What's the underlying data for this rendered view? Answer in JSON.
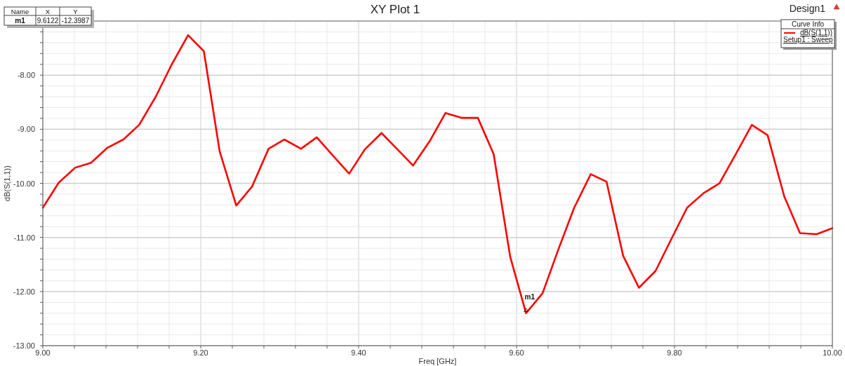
{
  "chart_data": {
    "type": "line",
    "title": "XY Plot 1",
    "subtitle": "Design1",
    "xlabel": "Freq [GHz]",
    "ylabel": "dB(S(1,1))",
    "legend_title": "Curve Info",
    "x": [
      9,
      9.02,
      9.041,
      9.061,
      9.082,
      9.102,
      9.122,
      9.143,
      9.163,
      9.184,
      9.204,
      9.224,
      9.245,
      9.265,
      9.286,
      9.306,
      9.327,
      9.347,
      9.367,
      9.388,
      9.408,
      9.429,
      9.449,
      9.469,
      9.49,
      9.51,
      9.531,
      9.551,
      9.571,
      9.592,
      9.612,
      9.633,
      9.653,
      9.673,
      9.694,
      9.714,
      9.735,
      9.755,
      9.776,
      9.796,
      9.816,
      9.837,
      9.857,
      9.878,
      9.898,
      9.918,
      9.939,
      9.959,
      9.98,
      10
    ],
    "series": [
      {
        "name": "dB(S(1,1))",
        "color": "#ff0000",
        "values": [
          -10.45,
          -9.99,
          -9.71,
          -9.62,
          -9.34,
          -9.19,
          -8.92,
          -8.4,
          -7.81,
          -7.26,
          -7.56,
          -9.41,
          -10.41,
          -10.06,
          -9.36,
          -9.19,
          -9.36,
          -9.15,
          -9.48,
          -9.82,
          -9.37,
          -9.07,
          -9.37,
          -9.67,
          -9.22,
          -8.7,
          -8.79,
          -8.79,
          -9.46,
          -11.36,
          -12.4,
          -12.03,
          -11.22,
          -10.45,
          -9.83,
          -9.97,
          -11.34,
          -11.93,
          -11.62,
          -11.03,
          -10.45,
          -10.18,
          -10,
          -9.45,
          -8.92,
          -9.11,
          -10.24,
          -10.92,
          -10.94,
          -10.83
        ]
      }
    ],
    "xlim": [
      9,
      10
    ],
    "ylim": [
      -13,
      -7
    ],
    "xticks": [
      {
        "value": 9,
        "label": "9.00"
      },
      {
        "value": 9.04,
        "label": null
      },
      {
        "value": 9.08,
        "label": null
      },
      {
        "value": 9.12,
        "label": null
      },
      {
        "value": 9.16,
        "label": null
      },
      {
        "value": 9.2,
        "label": "9.20"
      },
      {
        "value": 9.24,
        "label": null
      },
      {
        "value": 9.28,
        "label": null
      },
      {
        "value": 9.32,
        "label": null
      },
      {
        "value": 9.36,
        "label": null
      },
      {
        "value": 9.4,
        "label": "9.40"
      },
      {
        "value": 9.44,
        "label": null
      },
      {
        "value": 9.48,
        "label": null
      },
      {
        "value": 9.52,
        "label": null
      },
      {
        "value": 9.56,
        "label": null
      },
      {
        "value": 9.6,
        "label": "9.60"
      },
      {
        "value": 9.64,
        "label": null
      },
      {
        "value": 9.68,
        "label": null
      },
      {
        "value": 9.72,
        "label": null
      },
      {
        "value": 9.76,
        "label": null
      },
      {
        "value": 9.8,
        "label": "9.80"
      },
      {
        "value": 9.84,
        "label": null
      },
      {
        "value": 9.88,
        "label": null
      },
      {
        "value": 9.92,
        "label": null
      },
      {
        "value": 9.96,
        "label": null
      },
      {
        "value": 10,
        "label": "10.00"
      }
    ],
    "yticks": [
      {
        "value": -13,
        "label": "-13.00"
      },
      {
        "value": -12.8,
        "label": null
      },
      {
        "value": -12.6,
        "label": null
      },
      {
        "value": -12.4,
        "label": null
      },
      {
        "value": -12.2,
        "label": null
      },
      {
        "value": -12,
        "label": "-12.00"
      },
      {
        "value": -11.8,
        "label": null
      },
      {
        "value": -11.6,
        "label": null
      },
      {
        "value": -11.4,
        "label": null
      },
      {
        "value": -11.2,
        "label": null
      },
      {
        "value": -11,
        "label": "-11.00"
      },
      {
        "value": -10.8,
        "label": null
      },
      {
        "value": -10.6,
        "label": null
      },
      {
        "value": -10.4,
        "label": null
      },
      {
        "value": -10.2,
        "label": null
      },
      {
        "value": -10,
        "label": "-10.00"
      },
      {
        "value": -9.8,
        "label": null
      },
      {
        "value": -9.6,
        "label": null
      },
      {
        "value": -9.4,
        "label": null
      },
      {
        "value": -9.2,
        "label": null
      },
      {
        "value": -9,
        "label": "-9.00"
      },
      {
        "value": -8.8,
        "label": null
      },
      {
        "value": -8.6,
        "label": null
      },
      {
        "value": -8.4,
        "label": null
      },
      {
        "value": -8.2,
        "label": null
      },
      {
        "value": -8,
        "label": "-8.00"
      },
      {
        "value": -7.8,
        "label": null
      },
      {
        "value": -7.6,
        "label": null
      },
      {
        "value": -7.4,
        "label": null
      },
      {
        "value": -7.2,
        "label": null
      }
    ],
    "grid": true,
    "legend": "top right",
    "line_style": "solid",
    "annotations": [
      "Name",
      "X",
      "Y",
      "m1",
      "9.6122",
      "-12.3987",
      {
        "text": "m1",
        "x": 9.6122,
        "y": -12.3987
      },
      "Setup1 : Sweep"
    ]
  }
}
